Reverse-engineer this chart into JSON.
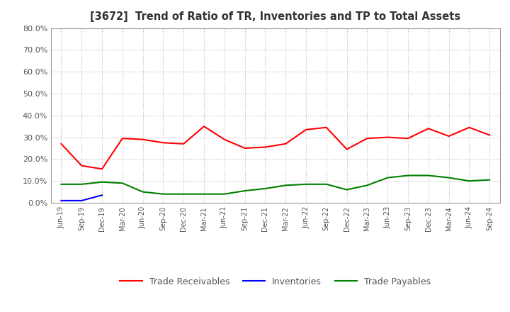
{
  "title": "[3672]  Trend of Ratio of TR, Inventories and TP to Total Assets",
  "x_labels": [
    "Jun-19",
    "Sep-19",
    "Dec-19",
    "Mar-20",
    "Jun-20",
    "Sep-20",
    "Dec-20",
    "Mar-21",
    "Jun-21",
    "Sep-21",
    "Dec-21",
    "Mar-22",
    "Jun-22",
    "Sep-22",
    "Dec-22",
    "Mar-23",
    "Jun-23",
    "Sep-23",
    "Dec-23",
    "Mar-24",
    "Jun-24",
    "Sep-24"
  ],
  "trade_receivables": [
    0.27,
    0.17,
    0.155,
    0.295,
    0.29,
    0.275,
    0.27,
    0.35,
    0.29,
    0.25,
    0.255,
    0.27,
    0.335,
    0.345,
    0.245,
    0.295,
    0.3,
    0.295,
    0.34,
    0.305,
    0.345,
    0.31
  ],
  "inventories": [
    0.01,
    0.01,
    0.035,
    null,
    null,
    null,
    null,
    null,
    null,
    null,
    null,
    null,
    null,
    null,
    null,
    null,
    null,
    null,
    null,
    null,
    null,
    null
  ],
  "trade_payables": [
    0.085,
    0.085,
    0.095,
    0.09,
    0.05,
    0.04,
    0.04,
    0.04,
    0.04,
    0.055,
    0.065,
    0.08,
    0.085,
    0.085,
    0.06,
    0.08,
    0.115,
    0.125,
    0.125,
    0.115,
    0.1,
    0.105
  ],
  "tr_color": "#ff0000",
  "inv_color": "#0000ff",
  "tp_color": "#008000",
  "ylim": [
    0.0,
    0.8
  ],
  "yticks": [
    0.0,
    0.1,
    0.2,
    0.3,
    0.4,
    0.5,
    0.6,
    0.7,
    0.8
  ],
  "background_color": "#ffffff",
  "grid_color": "#aaaaaa",
  "legend_labels": [
    "Trade Receivables",
    "Inventories",
    "Trade Payables"
  ],
  "title_color": "#333333",
  "tick_color": "#555555"
}
